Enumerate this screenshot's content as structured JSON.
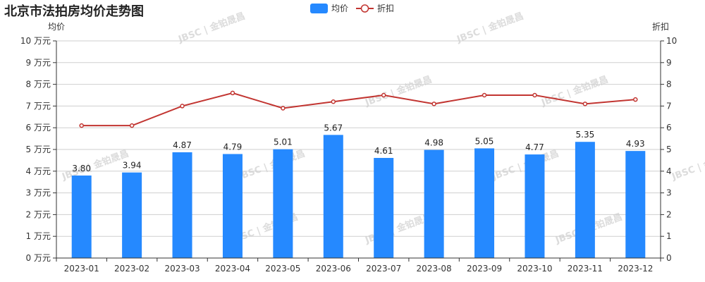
{
  "chart_data": {
    "type": "bar",
    "title": "北京市法拍房均价走势图",
    "categories": [
      "2023-01",
      "2023-02",
      "2023-03",
      "2023-04",
      "2023-05",
      "2023-06",
      "2023-07",
      "2023-08",
      "2023-09",
      "2023-10",
      "2023-11",
      "2023-12"
    ],
    "series": [
      {
        "name": "均价",
        "type": "bar",
        "axis": "left",
        "color": "#2589ff",
        "values": [
          3.8,
          3.94,
          4.87,
          4.79,
          5.01,
          5.67,
          4.61,
          4.98,
          5.05,
          4.77,
          5.35,
          4.93
        ],
        "value_labels": [
          "3.80",
          "3.94",
          "4.87",
          "4.79",
          "5.01",
          "5.67",
          "4.61",
          "4.98",
          "5.05",
          "4.77",
          "5.35",
          "4.93"
        ]
      },
      {
        "name": "折扣",
        "type": "line",
        "axis": "right",
        "color": "#c23531",
        "values": [
          6.1,
          6.1,
          7.0,
          7.6,
          6.9,
          7.2,
          7.5,
          7.1,
          7.5,
          7.5,
          7.1,
          7.3
        ]
      }
    ],
    "y_left": {
      "label": "均价",
      "ylim": [
        0,
        10
      ],
      "ticks": [
        "0 万元",
        "1 万元",
        "2 万元",
        "3 万元",
        "4 万元",
        "5 万元",
        "6 万元",
        "7 万元",
        "8 万元",
        "9 万元",
        "10 万元"
      ]
    },
    "y_right": {
      "label": "折扣",
      "ylim": [
        0,
        10
      ],
      "ticks": [
        "0",
        "1",
        "2",
        "3",
        "4",
        "5",
        "6",
        "7",
        "8",
        "9",
        "10"
      ]
    },
    "grid": true,
    "legend_position": "top-center",
    "watermark": "JBSC | 金铂晟昌"
  }
}
